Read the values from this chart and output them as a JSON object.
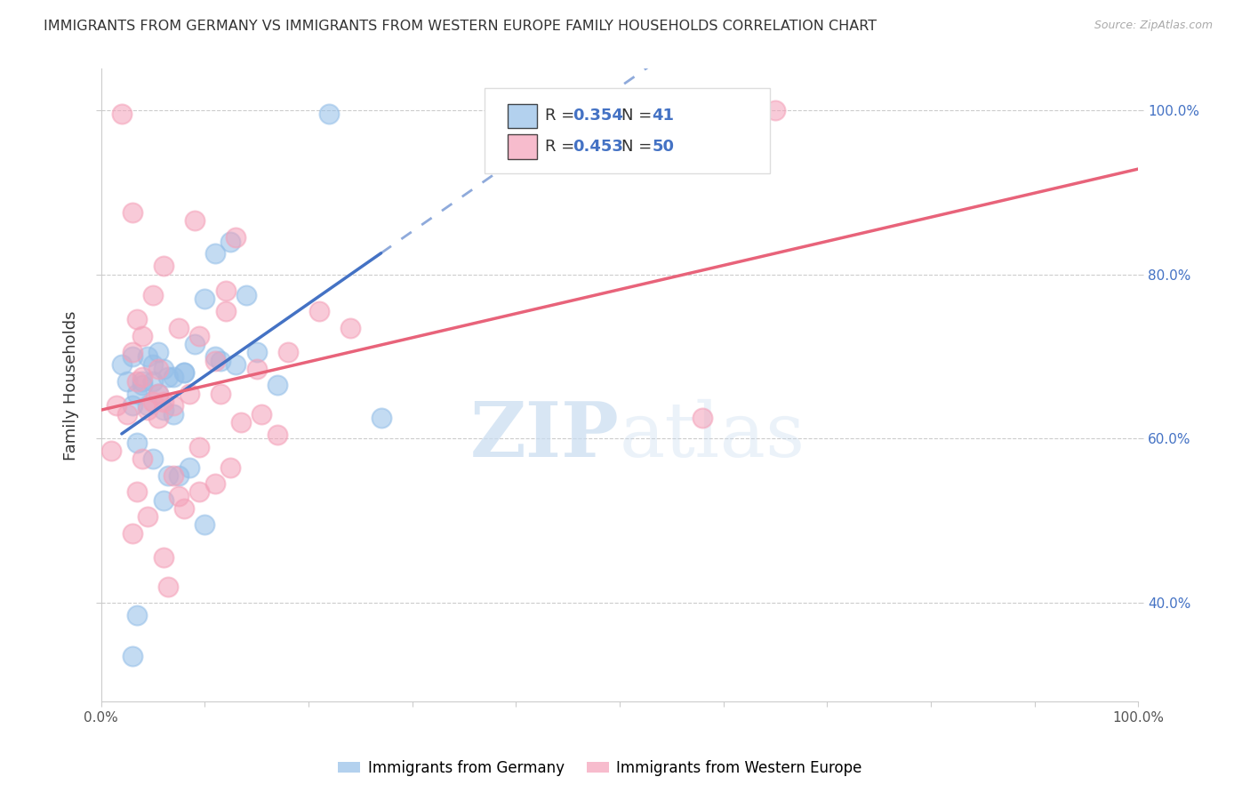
{
  "title": "IMMIGRANTS FROM GERMANY VS IMMIGRANTS FROM WESTERN EUROPE FAMILY HOUSEHOLDS CORRELATION CHART",
  "source": "Source: ZipAtlas.com",
  "ylabel": "Family Households",
  "r_germany": 0.354,
  "n_germany": 41,
  "r_western": 0.453,
  "n_western": 50,
  "legend_label_germany": "Immigrants from Germany",
  "legend_label_western": "Immigrants from Western Europe",
  "color_germany": "#93BEE8",
  "color_western": "#F4A0B8",
  "color_line_blue": "#4472C4",
  "color_line_pink": "#E8637A",
  "color_dashed": "#93BEE8",
  "watermark_zip": "ZIP",
  "watermark_atlas": "atlas",
  "germany_x": [
    3.0,
    8.0,
    12.5,
    11.0,
    2.0,
    4.5,
    5.0,
    3.5,
    4.0,
    6.0,
    7.0,
    14.0,
    5.5,
    10.0,
    6.5,
    17.0,
    8.0,
    11.5,
    4.0,
    5.5,
    6.0,
    3.0,
    4.5,
    9.0,
    3.5,
    13.0,
    11.0,
    5.0,
    7.0,
    3.5,
    6.5,
    8.5,
    5.0,
    7.5,
    6.0,
    10.0,
    22.0,
    15.0,
    3.0,
    27.0,
    2.5
  ],
  "germany_y": [
    70.0,
    68.0,
    84.0,
    82.5,
    69.0,
    70.0,
    69.0,
    65.5,
    67.0,
    68.5,
    67.5,
    77.5,
    70.5,
    77.0,
    67.5,
    66.5,
    68.0,
    69.5,
    66.5,
    65.5,
    63.5,
    64.0,
    64.0,
    71.5,
    59.5,
    69.0,
    70.0,
    57.5,
    63.0,
    38.5,
    55.5,
    56.5,
    67.0,
    55.5,
    52.5,
    49.5,
    99.5,
    70.5,
    33.5,
    62.5,
    67.0
  ],
  "western_x": [
    1.0,
    2.5,
    9.0,
    13.0,
    3.5,
    5.0,
    6.0,
    3.0,
    4.0,
    7.5,
    11.0,
    18.0,
    5.5,
    12.0,
    9.5,
    24.0,
    8.5,
    15.0,
    4.5,
    6.0,
    7.0,
    3.5,
    5.0,
    12.0,
    4.0,
    17.0,
    13.5,
    6.0,
    9.5,
    4.5,
    7.5,
    11.0,
    5.5,
    9.5,
    7.0,
    12.5,
    2.0,
    3.0,
    5.5,
    8.0,
    3.0,
    15.5,
    21.0,
    4.0,
    6.5,
    11.5,
    3.5,
    65.0,
    1.5,
    58.0
  ],
  "western_y": [
    58.5,
    63.0,
    86.5,
    84.5,
    74.5,
    77.5,
    81.0,
    70.5,
    72.5,
    73.5,
    69.5,
    70.5,
    68.5,
    75.5,
    72.5,
    73.5,
    65.5,
    68.5,
    63.5,
    64.5,
    64.0,
    67.0,
    64.5,
    78.0,
    57.5,
    60.5,
    62.0,
    45.5,
    59.0,
    50.5,
    53.0,
    54.5,
    65.5,
    53.5,
    55.5,
    56.5,
    99.5,
    87.5,
    62.5,
    51.5,
    48.5,
    63.0,
    75.5,
    67.5,
    42.0,
    65.5,
    53.5,
    100.0,
    64.0,
    62.5
  ],
  "xlim": [
    0,
    100
  ],
  "ylim": [
    28,
    105
  ],
  "yticks": [
    40,
    60,
    80,
    100
  ],
  "xtick_positions": [
    0,
    100
  ],
  "xtick_labels": [
    "0.0%",
    "100.0%"
  ],
  "ytick_labels_right": [
    "40.0%",
    "60.0%",
    "80.0%",
    "100.0%"
  ],
  "background_color": "#FFFFFF"
}
